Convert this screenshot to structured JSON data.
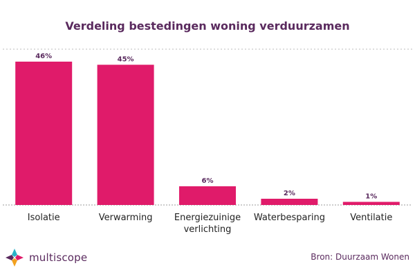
{
  "chart_data": {
    "type": "bar",
    "title": "Verdeling bestedingen woning verduurzamen",
    "categories": [
      "Isolatie",
      "Verwarming",
      "Energiezuinige verlichting",
      "Waterbesparing",
      "Ventilatie"
    ],
    "category_lines": [
      [
        "Isolatie"
      ],
      [
        "Verwarming"
      ],
      [
        "Energiezuinige",
        "verlichting"
      ],
      [
        "Waterbesparing"
      ],
      [
        "Ventilatie"
      ]
    ],
    "values": [
      46,
      45,
      6,
      2,
      1
    ],
    "value_labels": [
      "46%",
      "45%",
      "6%",
      "2%",
      "1%"
    ],
    "xlabel": "",
    "ylabel": "",
    "ylim": [
      0,
      50
    ],
    "grid": false,
    "legend": "none",
    "colors": {
      "bar": "#e01b6a",
      "axis": "#999999",
      "label": "#5a2a5e"
    }
  },
  "footer": {
    "brand": "multiscope",
    "source": "Bron: Duurzaam Wonen"
  },
  "icons": {
    "logo": "multiscope-logo-icon"
  }
}
